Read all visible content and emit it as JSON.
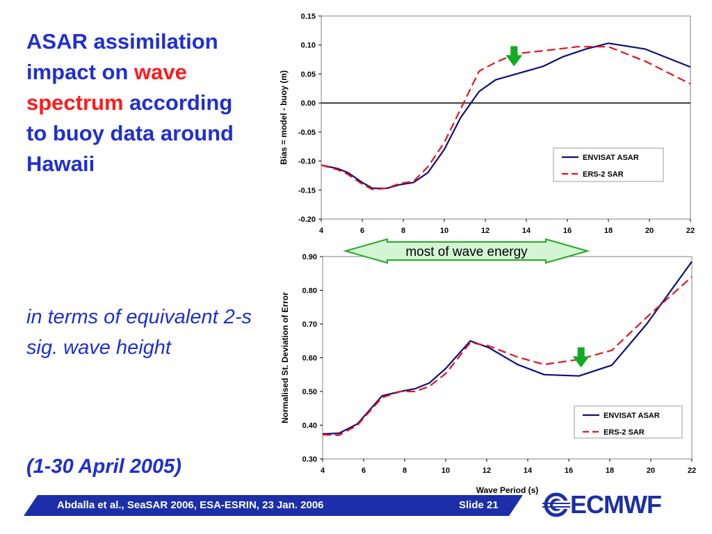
{
  "slide": {
    "title_pre": "ASAR assimilation impact on ",
    "title_highlight": "wave spectrum",
    "title_post": " according to buoy data around Hawaii",
    "subtitle": "in terms of equivalent 2-s sig. wave height",
    "period": "(1-30 April 2005)",
    "footer_text": "Abdalla et al.,  SeaSAR 2006,  ESA-ESRIN,  23 Jan. 2006",
    "slide_number": "Slide 21",
    "logo_text": "ECMWF",
    "band_label": "most of wave energy"
  },
  "colors": {
    "title": "#1f2fd2",
    "highlight": "#ff1a1a",
    "envisat": "#0d0d7a",
    "ers": "#e8121a",
    "arrow": "#11aa22",
    "band_fill": "#d4f5d4",
    "band_stroke": "#22aa22",
    "footer": "#1c2fa8"
  },
  "chart_data": [
    {
      "type": "line",
      "ylabel": "Bias = model - buoy    (m)",
      "xlabel": "",
      "xlim": [
        4,
        22
      ],
      "ylim": [
        -0.2,
        0.15
      ],
      "xticks": [
        "4",
        "6",
        "8",
        "10",
        "12",
        "14",
        "16",
        "18",
        "20",
        "22"
      ],
      "yticks": [
        "0.15",
        "0.10",
        "0.05",
        "0.00",
        "-0.05",
        "-0.10",
        "-0.15",
        "-0.20"
      ],
      "zero_line": true,
      "legend_position": "center-right",
      "arrow_at": [
        13.4,
        0.08
      ],
      "series": [
        {
          "name": "ENVISAT ASAR",
          "style": "solid",
          "x": [
            4,
            4.8,
            5.3,
            6,
            6.5,
            7.2,
            7.8,
            8.5,
            9.2,
            10,
            10.8,
            11.7,
            12.5,
            13.5,
            14.8,
            15.8,
            16.9,
            18,
            19.8,
            22
          ],
          "y": [
            -0.107,
            -0.113,
            -0.12,
            -0.137,
            -0.147,
            -0.147,
            -0.141,
            -0.137,
            -0.12,
            -0.08,
            -0.025,
            0.02,
            0.04,
            0.05,
            0.063,
            0.08,
            0.093,
            0.103,
            0.093,
            0.062
          ]
        },
        {
          "name": "ERS-2  SAR",
          "style": "dashed",
          "x": [
            4,
            4.8,
            5.3,
            6,
            6.5,
            7.2,
            7.8,
            8.5,
            9.2,
            10,
            10.8,
            11.7,
            12.5,
            13.5,
            14.8,
            16.5,
            18,
            19.8,
            22
          ],
          "y": [
            -0.107,
            -0.115,
            -0.123,
            -0.14,
            -0.149,
            -0.147,
            -0.139,
            -0.135,
            -0.11,
            -0.068,
            -0.01,
            0.055,
            0.07,
            0.085,
            0.09,
            0.097,
            0.097,
            0.072,
            0.033
          ]
        }
      ]
    },
    {
      "type": "line",
      "ylabel": "Normalised St. Deviation of Error",
      "xlabel": "Wave Period   (s)",
      "xlim": [
        4,
        22
      ],
      "ylim": [
        0.3,
        0.9
      ],
      "xticks": [
        "4",
        "6",
        "8",
        "10",
        "12",
        "14",
        "16",
        "18",
        "20",
        "22"
      ],
      "yticks": [
        "0.90",
        "0.80",
        "0.70",
        "0.60",
        "0.50",
        "0.40",
        "0.30"
      ],
      "zero_line": false,
      "legend_position": "bottom-right",
      "arrow_at": [
        16.6,
        0.6
      ],
      "series": [
        {
          "name": "ENVISAT ASAR",
          "style": "solid",
          "x": [
            4,
            4.8,
            5.7,
            6.9,
            7.8,
            8.5,
            9.2,
            10,
            11.2,
            12.1,
            13.5,
            14.8,
            16.5,
            18.1,
            19.8,
            22
          ],
          "y": [
            0.374,
            0.376,
            0.404,
            0.487,
            0.5,
            0.508,
            0.525,
            0.568,
            0.65,
            0.63,
            0.58,
            0.55,
            0.546,
            0.578,
            0.7,
            0.885
          ]
        },
        {
          "name": "ERS-2  SAR",
          "style": "dashed",
          "x": [
            4,
            4.8,
            5.7,
            6.9,
            7.8,
            8.5,
            9.2,
            10,
            11.2,
            12.1,
            13.5,
            14.8,
            16.5,
            18.1,
            19.8,
            22
          ],
          "y": [
            0.372,
            0.37,
            0.4,
            0.482,
            0.5,
            0.5,
            0.515,
            0.553,
            0.645,
            0.635,
            0.602,
            0.58,
            0.595,
            0.622,
            0.72,
            0.84
          ]
        }
      ]
    }
  ]
}
